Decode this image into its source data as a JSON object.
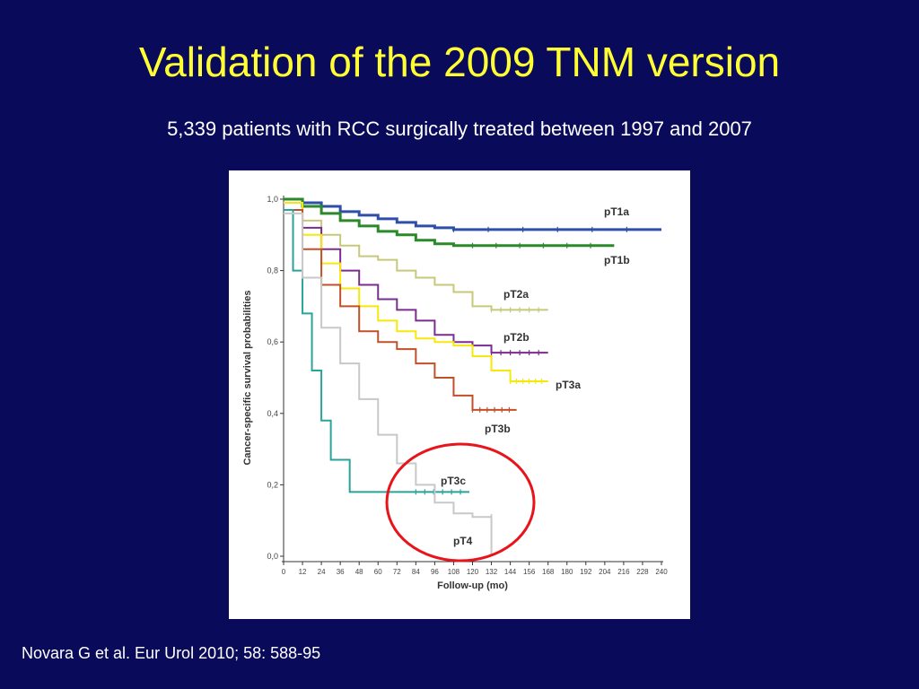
{
  "slide": {
    "title": "Validation of the 2009 TNM version",
    "subtitle": "5,339 patients with RCC surgically treated between 1997 and 2007",
    "citation": "Novara G et al. Eur Urol 2010; 58: 588-95",
    "background_color": "#0a0a5a",
    "title_color": "#ffff33",
    "highlight_circle_color": "#e8141c"
  },
  "chart_data": {
    "type": "line",
    "ylabel": "Cancer-specific survival probabilities",
    "xlabel": "Follow-up (mo)",
    "xlim": [
      0,
      240
    ],
    "ylim": [
      0,
      1
    ],
    "x_ticks": [
      0,
      12,
      24,
      36,
      48,
      60,
      72,
      84,
      96,
      108,
      120,
      132,
      144,
      156,
      168,
      180,
      192,
      204,
      216,
      228,
      240
    ],
    "y_ticks": [
      0.0,
      0.2,
      0.4,
      0.6,
      0.8,
      1.0
    ],
    "y_tick_labels": [
      "0,0",
      "0,2",
      "0,4",
      "0,6",
      "0,8",
      "1,0"
    ],
    "grid": false,
    "series": [
      {
        "name": "pT1a",
        "color": "#2e4fa8",
        "points": [
          [
            0,
            1.0
          ],
          [
            12,
            0.99
          ],
          [
            24,
            0.98
          ],
          [
            36,
            0.965
          ],
          [
            48,
            0.955
          ],
          [
            60,
            0.945
          ],
          [
            72,
            0.935
          ],
          [
            84,
            0.925
          ],
          [
            96,
            0.92
          ],
          [
            108,
            0.915
          ],
          [
            240,
            0.915
          ]
        ]
      },
      {
        "name": "pT1b",
        "color": "#2a8a2a",
        "points": [
          [
            0,
            1.0
          ],
          [
            12,
            0.98
          ],
          [
            24,
            0.96
          ],
          [
            36,
            0.94
          ],
          [
            48,
            0.925
          ],
          [
            60,
            0.91
          ],
          [
            72,
            0.9
          ],
          [
            84,
            0.885
          ],
          [
            96,
            0.875
          ],
          [
            108,
            0.87
          ],
          [
            120,
            0.87
          ],
          [
            210,
            0.87
          ]
        ]
      },
      {
        "name": "pT2a",
        "color": "#c8c87a",
        "points": [
          [
            0,
            0.99
          ],
          [
            12,
            0.94
          ],
          [
            24,
            0.9
          ],
          [
            36,
            0.87
          ],
          [
            48,
            0.84
          ],
          [
            60,
            0.83
          ],
          [
            72,
            0.8
          ],
          [
            84,
            0.78
          ],
          [
            96,
            0.76
          ],
          [
            108,
            0.74
          ],
          [
            120,
            0.7
          ],
          [
            132,
            0.69
          ],
          [
            168,
            0.69
          ]
        ]
      },
      {
        "name": "pT2b",
        "color": "#7b2d8e",
        "points": [
          [
            0,
            0.99
          ],
          [
            12,
            0.92
          ],
          [
            24,
            0.86
          ],
          [
            36,
            0.8
          ],
          [
            48,
            0.76
          ],
          [
            60,
            0.72
          ],
          [
            72,
            0.69
          ],
          [
            84,
            0.66
          ],
          [
            96,
            0.62
          ],
          [
            108,
            0.6
          ],
          [
            120,
            0.59
          ],
          [
            132,
            0.57
          ],
          [
            168,
            0.57
          ]
        ]
      },
      {
        "name": "pT3a",
        "color": "#f5e80a",
        "points": [
          [
            0,
            0.99
          ],
          [
            12,
            0.9
          ],
          [
            24,
            0.82
          ],
          [
            36,
            0.75
          ],
          [
            48,
            0.7
          ],
          [
            60,
            0.66
          ],
          [
            72,
            0.63
          ],
          [
            84,
            0.61
          ],
          [
            96,
            0.6
          ],
          [
            108,
            0.59
          ],
          [
            120,
            0.56
          ],
          [
            132,
            0.52
          ],
          [
            144,
            0.49
          ],
          [
            168,
            0.49
          ]
        ]
      },
      {
        "name": "pT3b",
        "color": "#c0502a",
        "points": [
          [
            0,
            0.97
          ],
          [
            12,
            0.86
          ],
          [
            24,
            0.76
          ],
          [
            36,
            0.7
          ],
          [
            48,
            0.63
          ],
          [
            60,
            0.6
          ],
          [
            72,
            0.58
          ],
          [
            84,
            0.54
          ],
          [
            96,
            0.5
          ],
          [
            108,
            0.45
          ],
          [
            120,
            0.41
          ],
          [
            148,
            0.41
          ]
        ]
      },
      {
        "name": "pT3c",
        "color": "#2aa39a",
        "points": [
          [
            0,
            0.97
          ],
          [
            6,
            0.8
          ],
          [
            12,
            0.68
          ],
          [
            18,
            0.52
          ],
          [
            24,
            0.38
          ],
          [
            30,
            0.27
          ],
          [
            36,
            0.27
          ],
          [
            42,
            0.18
          ],
          [
            84,
            0.18
          ],
          [
            118,
            0.18
          ]
        ]
      },
      {
        "name": "pT4",
        "color": "#c8c8c8",
        "points": [
          [
            0,
            0.96
          ],
          [
            12,
            0.78
          ],
          [
            24,
            0.64
          ],
          [
            36,
            0.54
          ],
          [
            48,
            0.44
          ],
          [
            60,
            0.34
          ],
          [
            72,
            0.26
          ],
          [
            84,
            0.2
          ],
          [
            96,
            0.15
          ],
          [
            108,
            0.12
          ],
          [
            120,
            0.11
          ],
          [
            132,
            0.11
          ],
          [
            132,
            0.0
          ]
        ]
      }
    ],
    "annotations": [
      "pT1a",
      "pT1b",
      "pT2a",
      "pT2b",
      "pT3a",
      "pT3b",
      "pT3c",
      "pT4"
    ]
  }
}
